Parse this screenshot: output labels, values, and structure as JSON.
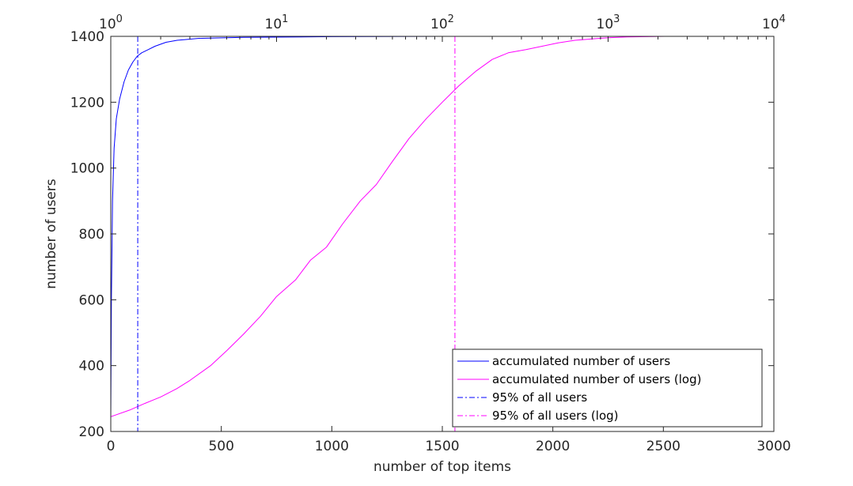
{
  "chart_data": {
    "type": "line",
    "xlabel": "number of top items",
    "ylabel": "number of users",
    "xlim": [
      0,
      3000
    ],
    "ylim": [
      200,
      1400
    ],
    "top_axis": {
      "scale": "log",
      "xlim": [
        1,
        10000
      ],
      "ticks": [
        {
          "value": 1,
          "base": "10",
          "exp": "0"
        },
        {
          "value": 10,
          "base": "10",
          "exp": "1"
        },
        {
          "value": 100,
          "base": "10",
          "exp": "2"
        },
        {
          "value": 1000,
          "base": "10",
          "exp": "3"
        },
        {
          "value": 10000,
          "base": "10",
          "exp": "4"
        }
      ]
    },
    "x_ticks": [
      "0",
      "500",
      "1000",
      "1500",
      "2000",
      "2500",
      "3000"
    ],
    "y_ticks": [
      "200",
      "400",
      "600",
      "800",
      "1000",
      "1200",
      "1400"
    ],
    "grid": false,
    "legend_position": "bottom-right",
    "series": [
      {
        "name": "accumulated number of users",
        "color": "#0000ff",
        "style": "solid",
        "axis": "bottom",
        "x": [
          0,
          3,
          8,
          15,
          25,
          40,
          60,
          80,
          100,
          120,
          140,
          170,
          200,
          250,
          300,
          400,
          600,
          1000,
          1500,
          2000,
          2620
        ],
        "y": [
          240,
          600,
          900,
          1060,
          1150,
          1210,
          1262,
          1298,
          1322,
          1340,
          1350,
          1360,
          1370,
          1382,
          1388,
          1394,
          1397,
          1399,
          1400,
          1400,
          1400
        ]
      },
      {
        "name": "accumulated number of users (log)",
        "color": "#ff00ff",
        "style": "solid",
        "axis": "top",
        "x": [
          1,
          1.3,
          1.6,
          2,
          2.5,
          3,
          4,
          5,
          6.3,
          8,
          10,
          13,
          16,
          20,
          25,
          32,
          40,
          50,
          63,
          80,
          100,
          126,
          160,
          200,
          250,
          320,
          400,
          500,
          630,
          800,
          1000,
          1300,
          1700,
          2200,
          3000
        ],
        "y": [
          245,
          265,
          285,
          305,
          330,
          355,
          400,
          445,
          495,
          550,
          610,
          660,
          720,
          760,
          830,
          900,
          950,
          1020,
          1090,
          1150,
          1200,
          1250,
          1295,
          1330,
          1350,
          1360,
          1370,
          1380,
          1388,
          1392,
          1396,
          1398,
          1399,
          1400,
          1400
        ]
      },
      {
        "name": "95% of all users",
        "color": "#0000ff",
        "style": "dashdot",
        "axis": "bottom",
        "vertical_x": 122
      },
      {
        "name": "95% of all users (log)",
        "color": "#ff00ff",
        "style": "dashdot",
        "axis": "bottom",
        "vertical_x": 1557
      }
    ]
  }
}
